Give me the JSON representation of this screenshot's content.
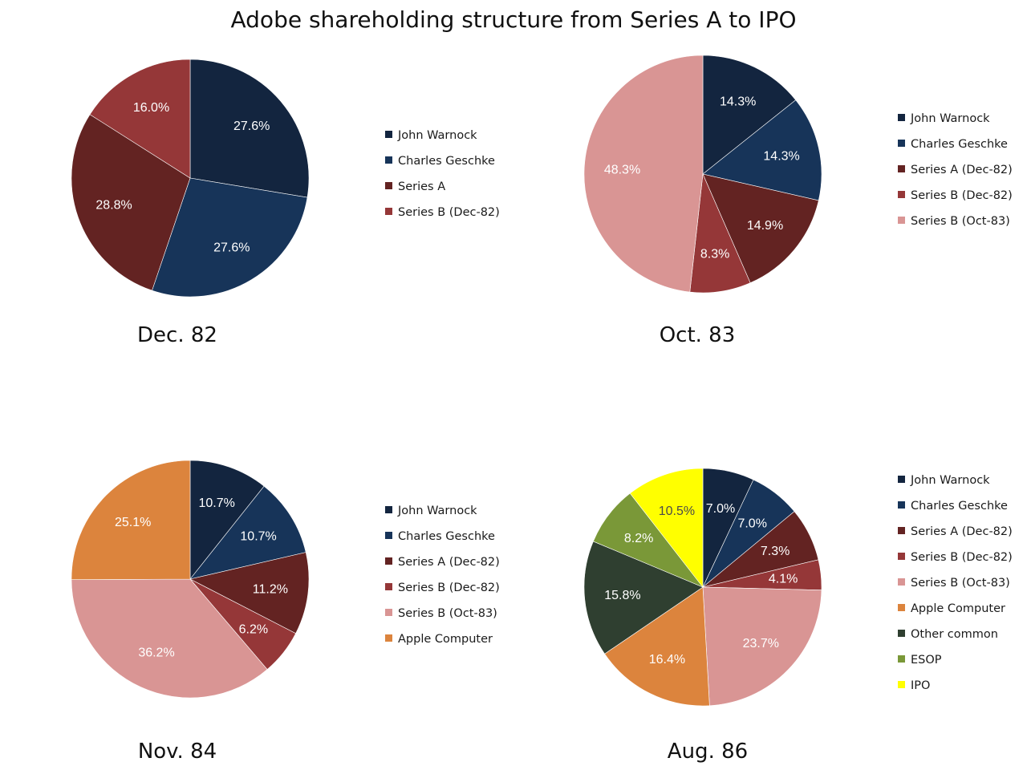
{
  "title": "Adobe shareholding structure from Series A to IPO",
  "colors": {
    "john_warnock": "#13253f",
    "charles_geschke": "#173459",
    "series_a": "#632322",
    "series_b_dec82": "#953738",
    "series_b_oct83": "#d99594",
    "apple_computer": "#dc843d",
    "other_common": "#2f3f30",
    "esop": "#7a9838",
    "ipo": "#ffff00"
  },
  "chart_data": [
    {
      "type": "pie",
      "caption": "Dec. 82",
      "categories": [
        "John Warnock",
        "Charles Geschke",
        "Series A",
        "Series B  (Dec-82)"
      ],
      "values": [
        27.6,
        27.6,
        28.8,
        16.0
      ],
      "labels": [
        "27.6%",
        "27.6%",
        "28.8%",
        "16.0%"
      ],
      "color_keys": [
        "john_warnock",
        "charles_geschke",
        "series_a",
        "series_b_dec82"
      ],
      "legend": "right"
    },
    {
      "type": "pie",
      "caption": "Oct. 83",
      "categories": [
        "John Warnock",
        "Charles Geschke",
        "Series A (Dec-82)",
        "Series B  (Dec-82)",
        "Series B (Oct-83)"
      ],
      "values": [
        14.3,
        14.3,
        14.9,
        8.3,
        48.3
      ],
      "labels": [
        "14.3%",
        "14.3%",
        "14.9%",
        "8.3%",
        "48.3%"
      ],
      "color_keys": [
        "john_warnock",
        "charles_geschke",
        "series_a",
        "series_b_dec82",
        "series_b_oct83"
      ],
      "legend": "right"
    },
    {
      "type": "pie",
      "caption": "Nov. 84",
      "categories": [
        "John Warnock",
        "Charles Geschke",
        "Series A (Dec-82)",
        "Series B  (Dec-82)",
        "Series B (Oct-83)",
        "Apple Computer"
      ],
      "values": [
        10.7,
        10.7,
        11.2,
        6.2,
        36.2,
        25.1
      ],
      "labels": [
        "10.7%",
        "10.7%",
        "11.2%",
        "6.2%",
        "36.2%",
        "25.1%"
      ],
      "color_keys": [
        "john_warnock",
        "charles_geschke",
        "series_a",
        "series_b_dec82",
        "series_b_oct83",
        "apple_computer"
      ],
      "legend": "right"
    },
    {
      "type": "pie",
      "caption": "Aug. 86",
      "categories": [
        "John Warnock",
        "Charles Geschke",
        "Series A (Dec-82)",
        "Series B  (Dec-82)",
        "Series B (Oct-83)",
        "Apple Computer",
        "Other common",
        "ESOP",
        "IPO"
      ],
      "values": [
        7.0,
        7.0,
        7.3,
        4.1,
        23.7,
        16.4,
        15.8,
        8.2,
        10.5
      ],
      "labels": [
        "7.0%",
        "7.0%",
        "7.3%",
        "4.1%",
        "23.7%",
        "16.4%",
        "15.8%",
        "8.2%",
        "10.5%"
      ],
      "color_keys": [
        "john_warnock",
        "charles_geschke",
        "series_a",
        "series_b_dec82",
        "series_b_oct83",
        "apple_computer",
        "other_common",
        "esop",
        "ipo"
      ],
      "legend": "right"
    }
  ]
}
